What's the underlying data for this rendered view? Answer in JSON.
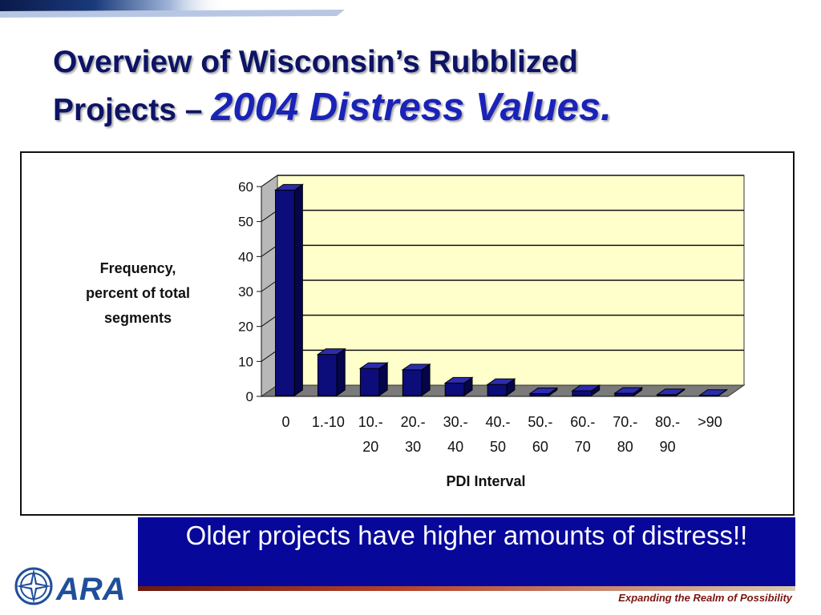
{
  "slide": {
    "title_line1": "Overview of Wisconsin’s Rubblized",
    "title_line2_lead": "Projects – ",
    "title_line2_emph": "2004 Distress Values.",
    "banner_text": "Older projects have higher amounts of distress!!",
    "tagline": "Expanding the Realm of Possibility",
    "logo_text": "ARA"
  },
  "chart_data": {
    "type": "bar",
    "categories": [
      "0",
      "1.-10",
      "10.-\n20",
      "20.-\n30",
      "30.-\n40",
      "40.-\n50",
      "50.-\n60",
      "60.-\n70",
      "70.-\n80",
      "80.-\n90",
      ">90"
    ],
    "values": [
      59,
      12,
      8,
      7.6,
      3.8,
      3.4,
      0.8,
      1.6,
      0.9,
      0.5,
      0.3
    ],
    "xlabel": "PDI Interval",
    "ylabel_lines": [
      "Frequency,",
      "percent of total",
      "segments"
    ],
    "ylim": [
      0,
      60
    ],
    "yticks": [
      0,
      10,
      20,
      30,
      40,
      50,
      60
    ],
    "grid": true,
    "colors": {
      "bar_front": "#0c0c7a",
      "bar_side": "#05054a",
      "bar_top": "#2c2cb0",
      "plot_back": "#ffffcc",
      "plot_floor": "#7a7a7a",
      "plot_side": "#b8b8b8"
    }
  },
  "colors": {
    "title": "#0d1466",
    "title_emphasis": "#1a23b8",
    "banner_bg": "#07079a",
    "tagline": "#7a1410"
  }
}
